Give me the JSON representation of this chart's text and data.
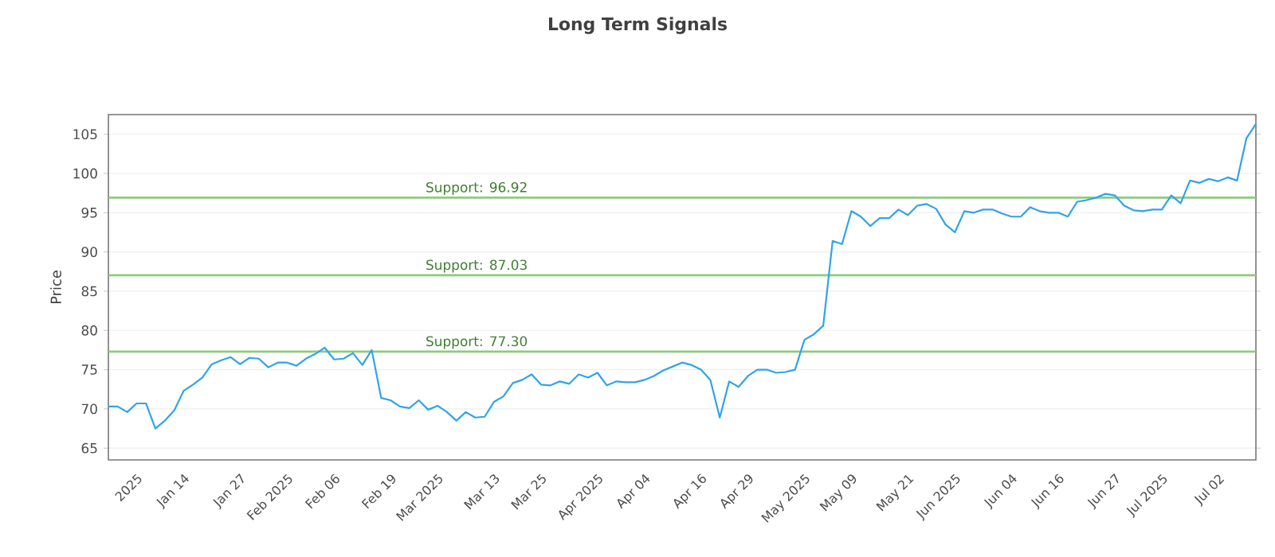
{
  "chart_data": {
    "type": "line",
    "title": "Long Term Signals",
    "ylabel": "Price",
    "categories": [
      null,
      null,
      null,
      "2025",
      null,
      null,
      null,
      null,
      "Jan 14",
      null,
      null,
      null,
      null,
      null,
      "Jan 27",
      null,
      null,
      null,
      null,
      "Feb 2025",
      null,
      null,
      null,
      null,
      "Feb 06",
      null,
      null,
      null,
      null,
      null,
      "Feb 19",
      null,
      null,
      null,
      null,
      "Mar 2025",
      null,
      null,
      null,
      null,
      null,
      "Mar 13",
      null,
      null,
      null,
      null,
      "Mar 25",
      null,
      null,
      null,
      null,
      null,
      "Apr 2025",
      null,
      null,
      null,
      null,
      "Apr 04",
      null,
      null,
      null,
      null,
      null,
      "Apr 16",
      null,
      null,
      null,
      null,
      "Apr 29",
      null,
      null,
      null,
      null,
      null,
      "May 2025",
      null,
      null,
      null,
      null,
      "May 09",
      null,
      null,
      null,
      null,
      null,
      "May 21",
      null,
      null,
      null,
      null,
      "Jun 2025",
      null,
      null,
      null,
      null,
      null,
      "Jun 04",
      null,
      null,
      null,
      null,
      "Jun 16",
      null,
      null,
      null,
      null,
      null,
      "Jun 27",
      null,
      null,
      null,
      null,
      "Jul 2025",
      null,
      null,
      null,
      null,
      null,
      "Jul 02",
      null,
      null,
      null,
      null
    ],
    "series": [
      {
        "color": "#31a3e8",
        "values": [
          70.3,
          70.3,
          69.6,
          70.7,
          70.7,
          67.5,
          68.5,
          69.8,
          72.3,
          73.1,
          74.0,
          75.7,
          76.2,
          76.6,
          75.7,
          76.5,
          76.4,
          75.3,
          75.9,
          75.9,
          75.5,
          76.4,
          77.0,
          77.8,
          76.3,
          76.4,
          77.1,
          75.6,
          77.5,
          71.4,
          71.1,
          70.3,
          70.1,
          71.1,
          69.9,
          70.4,
          69.6,
          68.5,
          69.6,
          68.9,
          69.0,
          70.9,
          71.6,
          73.3,
          73.7,
          74.4,
          73.1,
          73.0,
          73.5,
          73.2,
          74.4,
          74.0,
          74.6,
          73.0,
          73.5,
          73.4,
          73.4,
          73.7,
          74.2,
          74.9,
          75.4,
          75.9,
          75.6,
          75.0,
          73.7,
          68.9,
          73.5,
          72.8,
          74.2,
          75.0,
          75.0,
          74.6,
          74.7,
          75.0,
          78.8,
          79.5,
          80.6,
          91.4,
          91.0,
          95.2,
          94.5,
          93.3,
          94.3,
          94.3,
          95.4,
          94.7,
          95.9,
          96.1,
          95.5,
          93.5,
          92.5,
          95.2,
          95.0,
          95.4,
          95.4,
          94.9,
          94.5,
          94.5,
          95.7,
          95.2,
          95.0,
          95.0,
          94.5,
          96.4,
          96.6,
          96.9,
          97.4,
          97.2,
          95.9,
          95.3,
          95.2,
          95.4,
          95.4,
          97.2,
          96.2,
          99.1,
          98.8,
          99.3,
          99.0,
          99.5,
          99.1,
          104.5,
          106.3
        ]
      }
    ],
    "ylim": [
      63.5,
      107.5
    ],
    "yticks": [
      65,
      70,
      75,
      80,
      85,
      90,
      95,
      100,
      105
    ],
    "grid": "y",
    "marker": "none",
    "line_style": "solid",
    "ref_lines": [
      {
        "axis": "y",
        "value": 96.92,
        "label": "Support: 96.92",
        "color": "#8ccc7c"
      },
      {
        "axis": "y",
        "value": 87.03,
        "label": "Support: 87.03",
        "color": "#8ccc7c"
      },
      {
        "axis": "y",
        "value": 77.3,
        "label": "Support: 77.30",
        "color": "#8ccc7c"
      }
    ]
  }
}
